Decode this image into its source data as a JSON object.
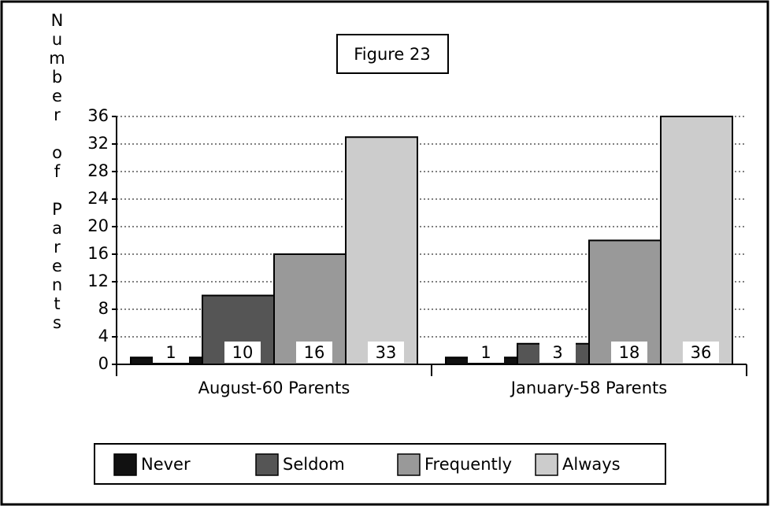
{
  "chart_data": {
    "type": "bar",
    "title": "Figure 23",
    "y_label": "Number of Parents",
    "categories": [
      "August-60 Parents",
      "January-58 Parents"
    ],
    "series": [
      {
        "name": "Never",
        "color": "#111111",
        "values": [
          1,
          1
        ]
      },
      {
        "name": "Seldom",
        "color": "#555555",
        "values": [
          10,
          3
        ]
      },
      {
        "name": "Frequently",
        "color": "#999999",
        "values": [
          16,
          18
        ]
      },
      {
        "name": "Always",
        "color": "#cccccc",
        "values": [
          33,
          36
        ]
      }
    ],
    "ylim": [
      0,
      36
    ],
    "yticks": [
      0,
      4,
      8,
      12,
      16,
      20,
      24,
      28,
      32,
      36
    ],
    "grid": true,
    "legend": "bottom"
  }
}
